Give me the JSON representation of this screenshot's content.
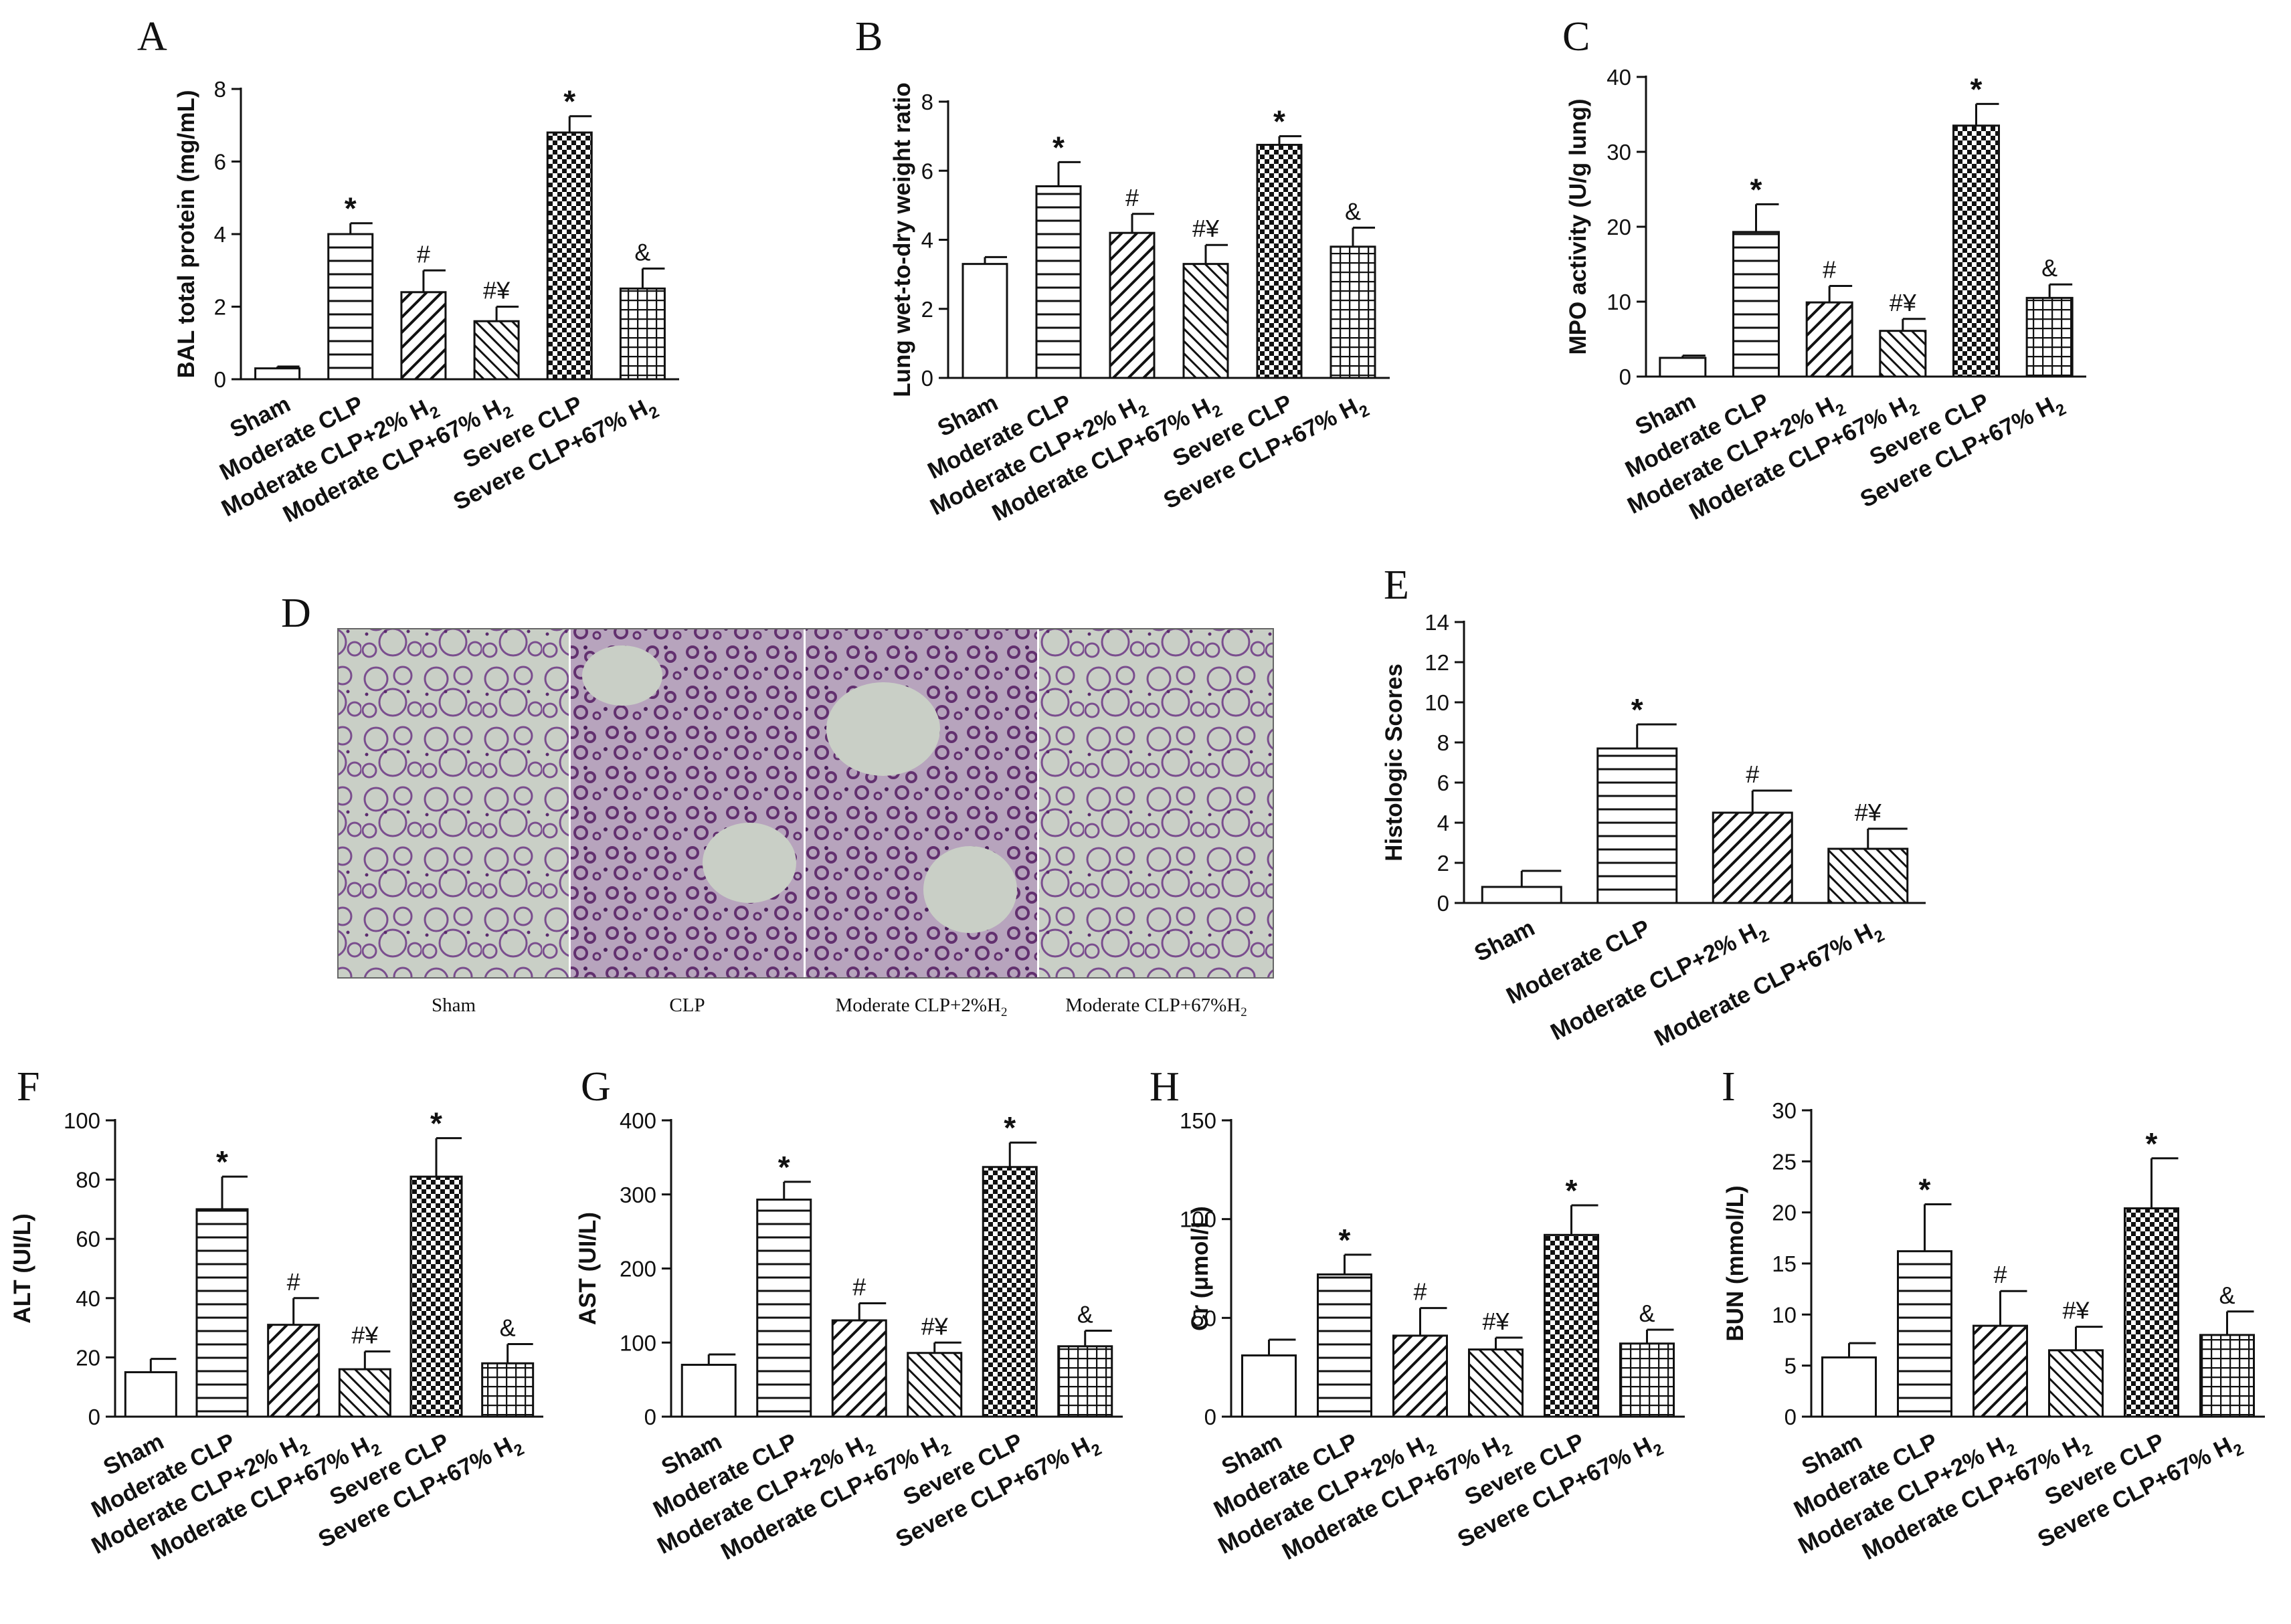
{
  "figure": {
    "micrograph": {
      "letter": "D",
      "labels": [
        {
          "text": "Sham",
          "sub": ""
        },
        {
          "text": "CLP",
          "sub": ""
        },
        {
          "text": "Moderate CLP+2%H",
          "sub": "2"
        },
        {
          "text": "Moderate CLP+67%H",
          "sub": "2"
        }
      ]
    }
  },
  "chart_data": [
    {
      "id": "A",
      "letter": "A",
      "type": "bar",
      "ylabel": "BAL total protein (mg/mL)",
      "ylim": [
        0,
        8
      ],
      "yticks": [
        0,
        2,
        4,
        6,
        8
      ],
      "categories": [
        {
          "text": "Sham",
          "sub": ""
        },
        {
          "text": "Moderate CLP",
          "sub": ""
        },
        {
          "text": "Moderate CLP+2% H",
          "sub": "2"
        },
        {
          "text": "Moderate CLP+67% H",
          "sub": "2"
        },
        {
          "text": "Severe CLP",
          "sub": ""
        },
        {
          "text": "Severe CLP+67% H",
          "sub": "2"
        }
      ],
      "patterns": [
        "none",
        "hlines",
        "diag",
        "diag2",
        "checker",
        "grid"
      ],
      "values": [
        0.3,
        4.0,
        2.4,
        1.6,
        6.8,
        2.5
      ],
      "errors": [
        0.05,
        0.3,
        0.6,
        0.4,
        0.45,
        0.55
      ],
      "annotations": [
        "",
        "*",
        "#",
        "#¥",
        "*",
        "&"
      ]
    },
    {
      "id": "B",
      "letter": "B",
      "type": "bar",
      "ylabel": "Lung wet-to-dry weight ratio",
      "ylim": [
        0,
        8
      ],
      "yticks": [
        0,
        2,
        4,
        6,
        8
      ],
      "categories": [
        {
          "text": "Sham",
          "sub": ""
        },
        {
          "text": "Moderate CLP",
          "sub": ""
        },
        {
          "text": "Moderate CLP+2% H",
          "sub": "2"
        },
        {
          "text": "Moderate CLP+67% H",
          "sub": "2"
        },
        {
          "text": "Severe CLP",
          "sub": ""
        },
        {
          "text": "Severe CLP+67% H",
          "sub": "2"
        }
      ],
      "patterns": [
        "none",
        "hlines",
        "diag",
        "diag2",
        "checker",
        "grid"
      ],
      "values": [
        3.3,
        5.55,
        4.2,
        3.3,
        6.75,
        3.8
      ],
      "errors": [
        0.2,
        0.7,
        0.55,
        0.55,
        0.25,
        0.55
      ],
      "annotations": [
        "",
        "*",
        "#",
        "#¥",
        "*",
        "&"
      ]
    },
    {
      "id": "C",
      "letter": "C",
      "type": "bar",
      "ylabel": "MPO activity (U/g lung)",
      "ylim": [
        0,
        40
      ],
      "yticks": [
        0,
        10,
        20,
        30,
        40
      ],
      "categories": [
        {
          "text": "Sham",
          "sub": ""
        },
        {
          "text": "Moderate CLP",
          "sub": ""
        },
        {
          "text": "Moderate CLP+2% H",
          "sub": "2"
        },
        {
          "text": "Moderate CLP+67% H",
          "sub": "2"
        },
        {
          "text": "Severe CLP",
          "sub": ""
        },
        {
          "text": "Severe CLP+67% H",
          "sub": "2"
        }
      ],
      "patterns": [
        "none",
        "hlines",
        "diag",
        "diag2",
        "checker",
        "grid"
      ],
      "values": [
        2.5,
        19.3,
        9.9,
        6.1,
        33.5,
        10.5
      ],
      "errors": [
        0.3,
        3.7,
        2.2,
        1.6,
        2.9,
        1.8
      ],
      "annotations": [
        "",
        "*",
        "#",
        "#¥",
        "*",
        "&"
      ]
    },
    {
      "id": "E",
      "letter": "E",
      "type": "bar",
      "ylabel": "Histologic Scores",
      "ylim": [
        0,
        14
      ],
      "yticks": [
        0,
        2,
        4,
        6,
        8,
        10,
        12,
        14
      ],
      "categories": [
        {
          "text": "Sham",
          "sub": ""
        },
        {
          "text": "Moderate CLP",
          "sub": ""
        },
        {
          "text": "Moderate CLP+2% H",
          "sub": "2"
        },
        {
          "text": "Moderate CLP+67% H",
          "sub": "2"
        }
      ],
      "patterns": [
        "none",
        "hlines",
        "diag",
        "diag2"
      ],
      "values": [
        0.8,
        7.7,
        4.5,
        2.7
      ],
      "errors": [
        0.8,
        1.2,
        1.1,
        1.0
      ],
      "annotations": [
        "",
        "*",
        "#",
        "#¥"
      ]
    },
    {
      "id": "F",
      "letter": "F",
      "type": "bar",
      "ylabel": "ALT (UI/L)",
      "ylim": [
        0,
        100
      ],
      "yticks": [
        0,
        20,
        40,
        60,
        80,
        100
      ],
      "categories": [
        {
          "text": "Sham",
          "sub": ""
        },
        {
          "text": "Moderate CLP",
          "sub": ""
        },
        {
          "text": "Moderate CLP+2% H",
          "sub": "2"
        },
        {
          "text": "Moderate CLP+67% H",
          "sub": "2"
        },
        {
          "text": "Severe CLP",
          "sub": ""
        },
        {
          "text": "Severe CLP+67% H",
          "sub": "2"
        }
      ],
      "patterns": [
        "none",
        "hlines",
        "diag",
        "diag2",
        "checker",
        "grid"
      ],
      "values": [
        15,
        70,
        31,
        16,
        81,
        18
      ],
      "errors": [
        4.5,
        11,
        9,
        6,
        13,
        6.5
      ],
      "annotations": [
        "",
        "*",
        "#",
        "#¥",
        "*",
        "&"
      ]
    },
    {
      "id": "G",
      "letter": "G",
      "type": "bar",
      "ylabel": "AST (UI/L)",
      "ylim": [
        0,
        400
      ],
      "yticks": [
        0,
        100,
        200,
        300,
        400
      ],
      "categories": [
        {
          "text": "Sham",
          "sub": ""
        },
        {
          "text": "Moderate CLP",
          "sub": ""
        },
        {
          "text": "Moderate CLP+2% H",
          "sub": "2"
        },
        {
          "text": "Moderate CLP+67% H",
          "sub": "2"
        },
        {
          "text": "Severe CLP",
          "sub": ""
        },
        {
          "text": "Severe CLP+67% H",
          "sub": "2"
        }
      ],
      "patterns": [
        "none",
        "hlines",
        "diag",
        "diag2",
        "checker",
        "grid"
      ],
      "values": [
        70,
        293,
        130,
        86,
        337,
        95
      ],
      "errors": [
        14,
        24,
        23,
        14,
        33,
        21
      ],
      "annotations": [
        "",
        "*",
        "#",
        "#¥",
        "*",
        "&"
      ]
    },
    {
      "id": "H",
      "letter": "H",
      "type": "bar",
      "ylabel": "Cr (μmol/L)",
      "ylim": [
        0,
        150
      ],
      "yticks": [
        0,
        50,
        100,
        150
      ],
      "categories": [
        {
          "text": "Sham",
          "sub": ""
        },
        {
          "text": "Moderate CLP",
          "sub": ""
        },
        {
          "text": "Moderate CLP+2% H",
          "sub": "2"
        },
        {
          "text": "Moderate CLP+67% H",
          "sub": "2"
        },
        {
          "text": "Severe CLP",
          "sub": ""
        },
        {
          "text": "Severe CLP+67% H",
          "sub": "2"
        }
      ],
      "patterns": [
        "none",
        "hlines",
        "diag",
        "diag2",
        "checker",
        "grid"
      ],
      "values": [
        31,
        72,
        41,
        34,
        92,
        37
      ],
      "errors": [
        8,
        10,
        14,
        6,
        15,
        7
      ],
      "annotations": [
        "",
        "*",
        "#",
        "#¥",
        "*",
        "&"
      ]
    },
    {
      "id": "I",
      "letter": "I",
      "type": "bar",
      "ylabel": "BUN (mmol/L)",
      "ylim": [
        0,
        30
      ],
      "yticks": [
        0,
        5,
        10,
        15,
        20,
        25,
        30
      ],
      "categories": [
        {
          "text": "Sham",
          "sub": ""
        },
        {
          "text": "Moderate CLP",
          "sub": ""
        },
        {
          "text": "Moderate CLP+2% H",
          "sub": "2"
        },
        {
          "text": "Moderate CLP+67% H",
          "sub": "2"
        },
        {
          "text": "Severe CLP",
          "sub": ""
        },
        {
          "text": "Severe CLP+67% H",
          "sub": "2"
        }
      ],
      "patterns": [
        "none",
        "hlines",
        "diag",
        "diag2",
        "checker",
        "grid"
      ],
      "values": [
        5.8,
        16.2,
        8.9,
        6.5,
        20.4,
        8.0
      ],
      "errors": [
        1.4,
        4.6,
        3.4,
        2.3,
        4.9,
        2.3
      ],
      "annotations": [
        "",
        "*",
        "#",
        "#¥",
        "*",
        "&"
      ]
    }
  ]
}
